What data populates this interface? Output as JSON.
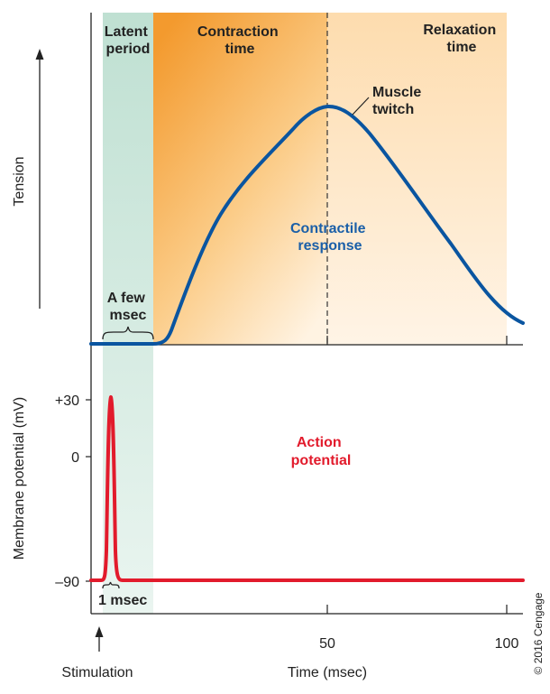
{
  "top_panel": {
    "y_axis_label": "Tension",
    "phases": [
      {
        "lines": [
          "Latent",
          "period"
        ]
      },
      {
        "lines": [
          "Contraction",
          "time"
        ]
      },
      {
        "lines": [
          "Relaxation",
          "time"
        ]
      }
    ],
    "curve_label": [
      "Muscle",
      "twitch"
    ],
    "response_label": [
      "Contractile",
      "response"
    ],
    "brace_label": [
      "A few",
      "msec"
    ]
  },
  "bottom_panel": {
    "y_axis_label": "Membrane potential (mV)",
    "y_ticks": [
      "+30",
      "0",
      "–90"
    ],
    "trace_label": [
      "Action",
      "potential"
    ],
    "brace_label": "1 msec"
  },
  "x_axis": {
    "label": "Time (msec)",
    "ticks": [
      "50",
      "100"
    ],
    "stimulation_label": "Stimulation"
  },
  "copyright": "© 2016 Cengage",
  "colors": {
    "latent": "#cfe6dc",
    "contraction": "#f5a640",
    "relaxation": "#fde6c0",
    "twitch_curve": "#0a55a0",
    "action_potential": "#e21b2c"
  }
}
